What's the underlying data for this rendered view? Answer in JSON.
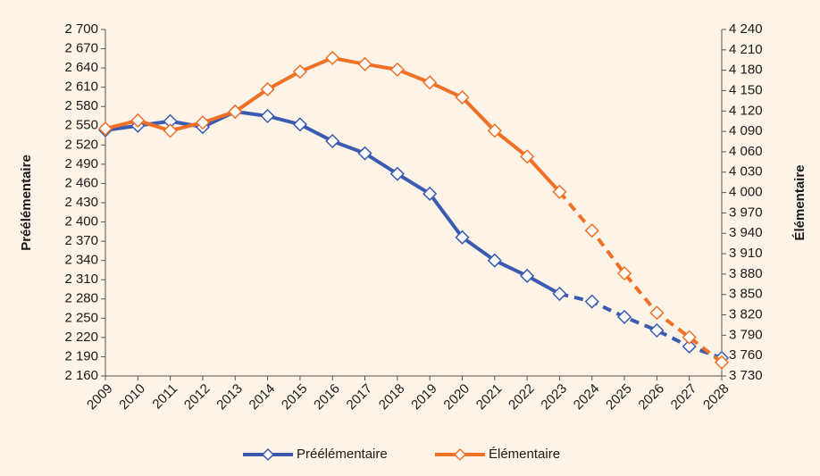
{
  "chart_data": {
    "type": "line",
    "categories": [
      "2009",
      "2010",
      "2011",
      "2012",
      "2013",
      "2014",
      "2015",
      "2016",
      "2017",
      "2018",
      "2019",
      "2020",
      "2021",
      "2022",
      "2023",
      "2024",
      "2025",
      "2026",
      "2027",
      "2028"
    ],
    "y_label": "Préélémentaire",
    "y2_label": "Élémentaire",
    "series": [
      {
        "name": "Préélémentaire",
        "color": "#3a5bb0",
        "dashed_from": 14,
        "values": [
          2543,
          2550,
          2557,
          2548,
          2572,
          2565,
          2552,
          2526,
          2507,
          2475,
          2444,
          2376,
          2340,
          2316,
          2288,
          2276,
          2252,
          2231,
          2206,
          2188
        ]
      },
      {
        "name": "Élémentaire",
        "color": "#f07026",
        "axis": "y2",
        "dashed_from": 14,
        "values": [
          4094,
          4106,
          4091,
          4103,
          4119,
          4152,
          4178,
          4198,
          4189,
          4181,
          4162,
          4140,
          4091,
          4053,
          4001,
          3944,
          3881,
          3823,
          3787,
          3750
        ]
      }
    ],
    "ylim": [
      2160,
      2700
    ],
    "yticks": [
      {
        "value": 2160,
        "label": "2 160"
      },
      {
        "value": 2190,
        "label": "2 190"
      },
      {
        "value": 2220,
        "label": "2 220"
      },
      {
        "value": 2250,
        "label": "2 250"
      },
      {
        "value": 2280,
        "label": "2 280"
      },
      {
        "value": 2310,
        "label": "2 310"
      },
      {
        "value": 2340,
        "label": "2 340"
      },
      {
        "value": 2370,
        "label": "2 370"
      },
      {
        "value": 2400,
        "label": "2 400"
      },
      {
        "value": 2430,
        "label": "2 430"
      },
      {
        "value": 2460,
        "label": "2 460"
      },
      {
        "value": 2490,
        "label": "2 490"
      },
      {
        "value": 2520,
        "label": "2 520"
      },
      {
        "value": 2550,
        "label": "2 550"
      },
      {
        "value": 2580,
        "label": "2 580"
      },
      {
        "value": 2610,
        "label": "2 610"
      },
      {
        "value": 2640,
        "label": "2 640"
      },
      {
        "value": 2670,
        "label": "2 670"
      },
      {
        "value": 2700,
        "label": "2 700"
      }
    ],
    "y2lim": [
      3730,
      4240
    ],
    "y2ticks": [
      {
        "value": 3730,
        "label": "3 730"
      },
      {
        "value": 3760,
        "label": "3 760"
      },
      {
        "value": 3790,
        "label": "3 790"
      },
      {
        "value": 3820,
        "label": "3 820"
      },
      {
        "value": 3850,
        "label": "3 850"
      },
      {
        "value": 3880,
        "label": "3 880"
      },
      {
        "value": 3910,
        "label": "3 910"
      },
      {
        "value": 3940,
        "label": "3 940"
      },
      {
        "value": 3970,
        "label": "3 970"
      },
      {
        "value": 4000,
        "label": "4 000"
      },
      {
        "value": 4030,
        "label": "4 030"
      },
      {
        "value": 4060,
        "label": "4 060"
      },
      {
        "value": 4090,
        "label": "4 090"
      },
      {
        "value": 4120,
        "label": "4 120"
      },
      {
        "value": 4150,
        "label": "4 150"
      },
      {
        "value": 4180,
        "label": "4 180"
      },
      {
        "value": 4210,
        "label": "4 210"
      },
      {
        "value": 4240,
        "label": "4 240"
      }
    ],
    "grid": false,
    "legend": "bottom",
    "background": "#fdf3e6"
  }
}
